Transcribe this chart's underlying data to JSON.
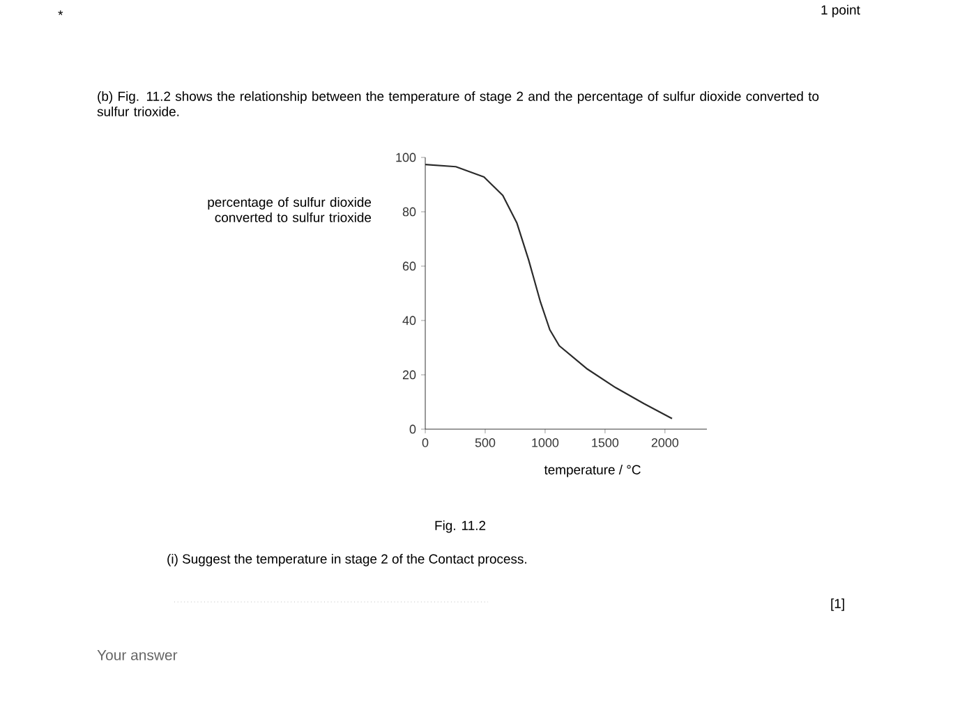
{
  "chart_data": {
    "type": "line",
    "title": "(b) Fig. 11.2 shows the relationship between the temperature of stage 2 and the percentage of sulfur dioxide converted to sulfur trioxide.",
    "xlabel": "temperature / °C",
    "ylabel": "percentage of sulfur dioxide converted to sulfur trioxide",
    "x": [
      0,
      255,
      490,
      647,
      765,
      863,
      961,
      1039,
      1118,
      1353,
      1588,
      1824,
      2059
    ],
    "values": [
      97.4,
      96.6,
      92.8,
      86,
      75.8,
      62.2,
      46.8,
      36.6,
      30.7,
      22.1,
      15.3,
      9.4,
      3.9
    ],
    "color": "#2a2a2a",
    "xlim": [
      0,
      2350
    ],
    "ylim": [
      0,
      100
    ],
    "xticks": [
      0,
      500,
      1000,
      1500,
      2000
    ],
    "yticks": [
      0,
      20,
      40,
      60,
      80,
      100
    ],
    "annotations": [
      "*",
      "1 point",
      "Fig. 11.2",
      "(i) Suggest the temperature in stage 2 of the Contact process.",
      "[1]",
      "Your answer"
    ]
  }
}
